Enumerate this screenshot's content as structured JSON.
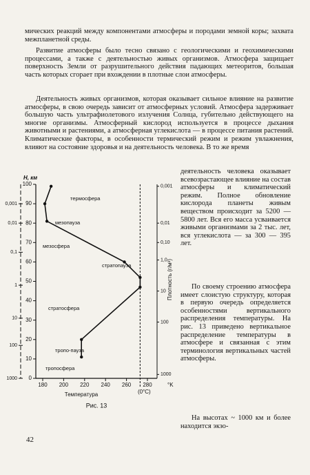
{
  "page": {
    "text_top": "мических реакций между компонентами атмосферы и породами земной коры; захвата межпланетной среды.",
    "para1": "Развитие атмосферы было тесно связано с геологическими и геохимическими процессами, а также с деятельностью живых организмов. Атмосфера защищает поверхность Земли от разрушительного действия падающих метеоритов, большая часть которых сгорает при вхождении в плотные слои атмосферы.",
    "para2_wide": "Деятельность живых организмов, которая оказывает сильное влияние на развитие атмосферы, в свою очередь зависит от атмосферных условий. Атмосфера задерживает большую часть ультрафиолетового излучения Солнца, губительно действующего на многие организмы. Атмосферный кислород используется в процессе дыхания животными и растениями, а атмосферная углекислота — в процессе питания растений. Климатические факторы, в особенности термический режим и режим увлажнения, влияют на состояние здоровья и на деятельность человека. В то же время",
    "para2_narrow": "деятельность человека оказывает всевозрастающее влияние на состав атмосферы и климатический режим. Полное обновление кислорода планеты живым веществом происходит за 5200 — 5800 лет. Вся его масса усваивается живыми организмами за 2 тыс. лет, вся углекислота — за 300 — 395 лет.",
    "para3": "По своему строению атмосфера имеет слоистую структуру, которая в первую очередь определяется особенностями вертикального распределения температуры. На рис. 13 приведено вертикальное распределение температуры в атмосфере и связанная с этим терминология вертикальных частей атмосферы.",
    "para4": "На высотах ~ 1000 км и более находится экзо-",
    "page_number": "42"
  },
  "figure": {
    "caption": "Рис. 13",
    "y_axis_label": "H, км",
    "y_ticks": [
      0,
      10,
      20,
      30,
      40,
      50,
      60,
      70,
      80,
      90,
      100
    ],
    "pressure_ticks": [
      {
        "value": 90,
        "label": "0,001"
      },
      {
        "value": 80,
        "label": "0,01"
      },
      {
        "value": 65,
        "label": "0,1"
      },
      {
        "value": 48,
        "label": "1"
      },
      {
        "value": 31,
        "label": "10"
      },
      {
        "value": 17,
        "label": "100"
      },
      {
        "value": 0,
        "label": "1000"
      }
    ],
    "density_ticks": [
      {
        "value": 99,
        "label": "0,001"
      },
      {
        "value": 80,
        "label": "0,01"
      },
      {
        "value": 70,
        "label": "0,10"
      },
      {
        "value": 61,
        "label": "1,0"
      },
      {
        "value": 45,
        "label": "10"
      },
      {
        "value": 29,
        "label": "100"
      },
      {
        "value": 2,
        "label": "1000"
      }
    ],
    "density_label": "Плотность (г/м³)",
    "x_ticks": [
      180,
      200,
      220,
      240,
      260,
      280
    ],
    "x_unit": "°K",
    "zero_c_tick": {
      "value": 273,
      "label": "(0°C)"
    },
    "x_axis_label": "Температура",
    "layers": [
      "термосфера",
      "мезопауза",
      "мезосфера",
      "стратопауза",
      "стратосфера",
      "тропо-пауза",
      "тропосфера"
    ],
    "curve": {
      "temperature": [
        188,
        182,
        184,
        258,
        273,
        273,
        217,
        217
      ],
      "height": [
        99,
        90,
        81,
        60,
        52,
        47,
        20,
        11
      ]
    }
  }
}
